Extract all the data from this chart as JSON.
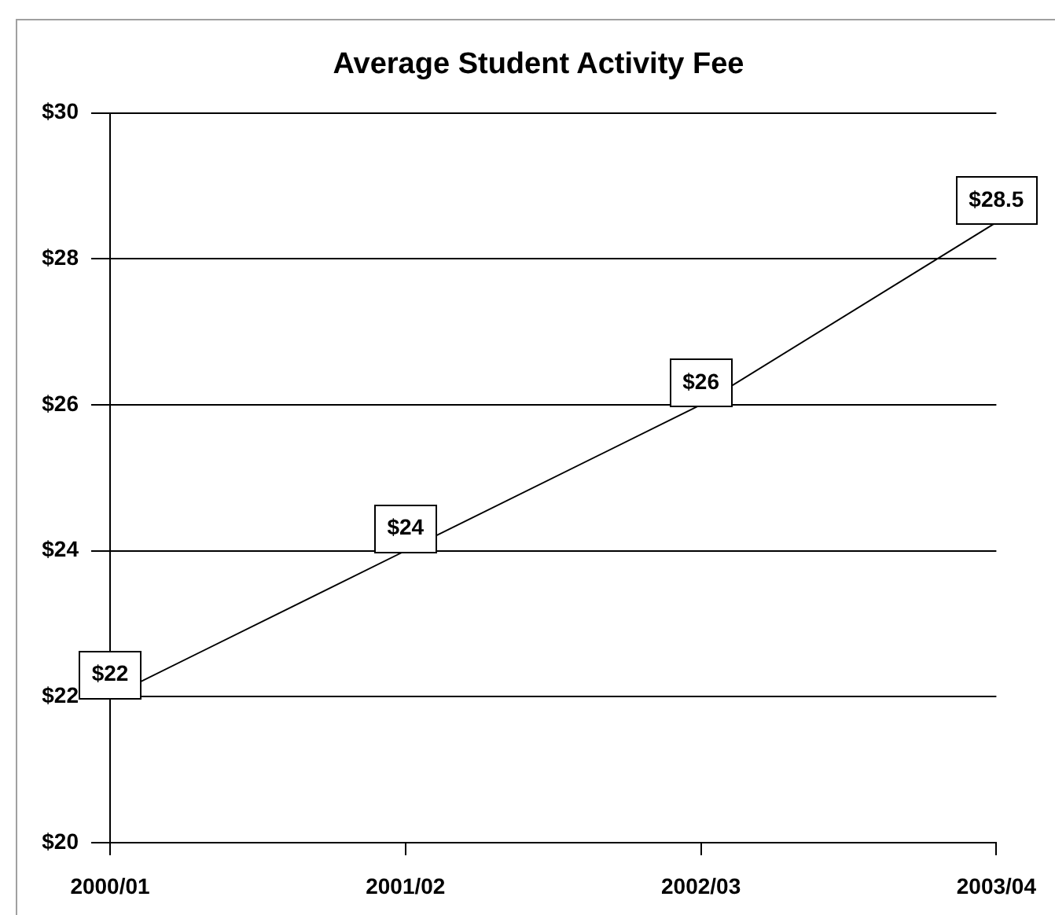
{
  "chart_data": {
    "type": "line",
    "title": "Average Student Activity Fee",
    "categories": [
      "2000/01",
      "2001/02",
      "2002/03",
      "2003/04"
    ],
    "values": [
      22,
      24,
      26,
      28.5
    ],
    "color": "#000000",
    "value_labels": [
      "$22",
      "$24",
      "$26",
      "$28.5"
    ],
    "ylim": [
      20,
      30
    ],
    "yticks": [
      {
        "value": 20,
        "label": "$20"
      },
      {
        "value": 22,
        "label": "$22"
      },
      {
        "value": 24,
        "label": "$24"
      },
      {
        "value": 26,
        "label": "$26"
      },
      {
        "value": 28,
        "label": "$28"
      },
      {
        "value": 30,
        "label": "$30"
      }
    ],
    "grid": "y",
    "marker": "none",
    "line_style": "solid"
  }
}
